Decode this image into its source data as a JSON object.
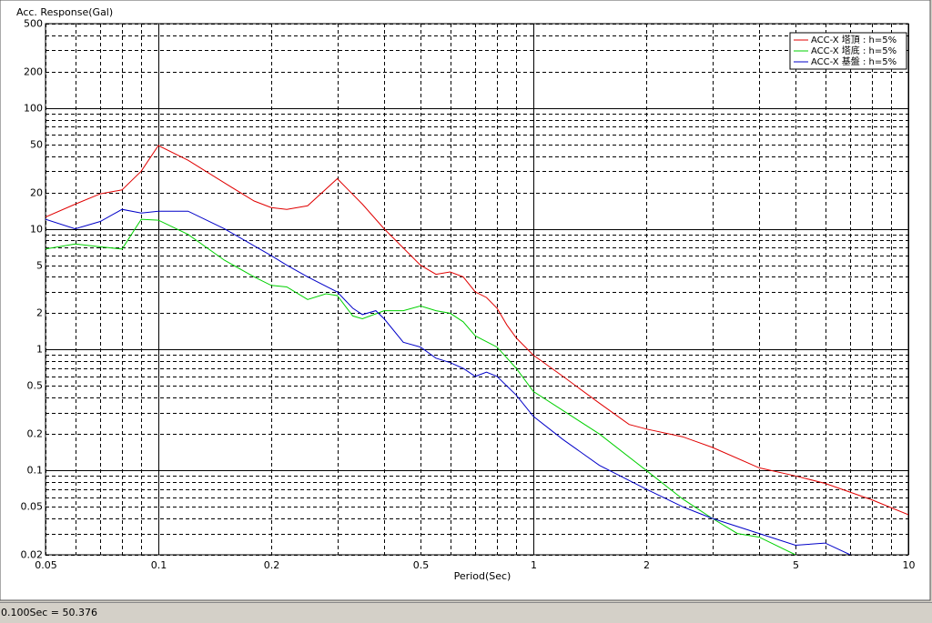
{
  "chart_data": {
    "type": "line",
    "y_label": "Acc. Response(Gal)",
    "x_label": "Period(Sec)",
    "log_x": true,
    "log_y": true,
    "grid": true,
    "legend": "top-right",
    "xlim": [
      0.05,
      10
    ],
    "ylim": [
      0.02,
      500
    ],
    "xticks": [
      0.05,
      0.1,
      0.2,
      0.5,
      1,
      2,
      5,
      10
    ],
    "yticks": [
      0.02,
      0.05,
      0.1,
      0.2,
      0.5,
      1,
      2,
      5,
      10,
      20,
      50,
      100,
      200,
      500
    ],
    "minor_xticks": [
      0.06,
      0.07,
      0.08,
      0.09,
      0.3,
      0.4,
      0.6,
      0.7,
      0.8,
      0.9,
      3,
      4,
      6,
      7,
      8,
      9
    ],
    "minor_yticks": [
      0.03,
      0.04,
      0.06,
      0.07,
      0.08,
      0.09,
      0.3,
      0.4,
      0.6,
      0.7,
      0.8,
      0.9,
      3,
      4,
      6,
      7,
      8,
      9,
      30,
      40,
      60,
      70,
      80,
      90,
      300,
      400
    ],
    "series": [
      {
        "name": "ACC-X 塔頂 : h=5%",
        "color": "#e00000",
        "x": [
          0.05,
          0.06,
          0.07,
          0.08,
          0.09,
          0.1,
          0.12,
          0.15,
          0.18,
          0.2,
          0.22,
          0.25,
          0.3,
          0.35,
          0.4,
          0.5,
          0.55,
          0.6,
          0.65,
          0.7,
          0.75,
          0.8,
          0.85,
          0.9,
          1,
          1.2,
          1.5,
          1.8,
          2,
          2.5,
          3,
          4,
          5,
          6,
          8,
          10
        ],
        "values": [
          12.5,
          16,
          19.5,
          21,
          30,
          49,
          37,
          24,
          17,
          15,
          14.5,
          15.5,
          26,
          16,
          10,
          5,
          4.2,
          4.4,
          4,
          3,
          2.7,
          2.2,
          1.6,
          1.25,
          0.9,
          0.6,
          0.36,
          0.24,
          0.22,
          0.19,
          0.155,
          0.105,
          0.09,
          0.078,
          0.057,
          0.043
        ]
      },
      {
        "name": "ACC-X 塔底 : h=5%",
        "color": "#00d000",
        "x": [
          0.05,
          0.06,
          0.07,
          0.08,
          0.09,
          0.1,
          0.12,
          0.15,
          0.18,
          0.2,
          0.22,
          0.25,
          0.28,
          0.3,
          0.33,
          0.35,
          0.4,
          0.45,
          0.5,
          0.55,
          0.6,
          0.65,
          0.7,
          0.8,
          0.9,
          1,
          1.5,
          2,
          2.5,
          3,
          3.5,
          4,
          5
        ],
        "values": [
          6.8,
          7.5,
          7.1,
          6.8,
          12,
          11.8,
          9,
          5.5,
          4,
          3.4,
          3.3,
          2.6,
          2.9,
          2.8,
          1.9,
          1.8,
          2.1,
          2.1,
          2.3,
          2.1,
          2,
          1.7,
          1.3,
          1.05,
          0.7,
          0.45,
          0.2,
          0.1,
          0.058,
          0.04,
          0.03,
          0.028,
          0.02
        ]
      },
      {
        "name": "ACC-X 基盤 : h=5%",
        "color": "#0000c8",
        "x": [
          0.05,
          0.06,
          0.07,
          0.08,
          0.09,
          0.1,
          0.12,
          0.15,
          0.2,
          0.22,
          0.25,
          0.3,
          0.33,
          0.35,
          0.38,
          0.4,
          0.45,
          0.5,
          0.55,
          0.6,
          0.65,
          0.7,
          0.75,
          0.8,
          0.9,
          1,
          1.2,
          1.5,
          2,
          2.5,
          3,
          4,
          5,
          6,
          7
        ],
        "values": [
          12,
          10,
          11.5,
          14.5,
          13.5,
          14,
          14,
          10,
          6,
          5,
          4,
          3,
          2.2,
          1.95,
          2.1,
          1.8,
          1.15,
          1.05,
          0.85,
          0.78,
          0.7,
          0.6,
          0.65,
          0.6,
          0.42,
          0.28,
          0.18,
          0.11,
          0.07,
          0.05,
          0.04,
          0.03,
          0.024,
          0.025,
          0.02
        ]
      }
    ]
  },
  "status_text": "0.100Sec = 50.376"
}
